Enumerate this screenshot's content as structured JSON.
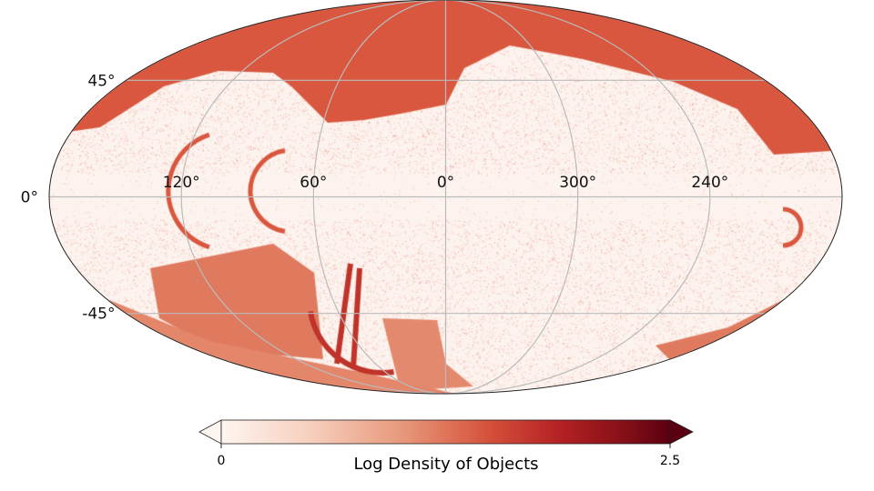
{
  "chart_data": {
    "type": "heatmap",
    "projection": "mollweide",
    "title": "",
    "colorbar": {
      "label": "Log Density of Objects",
      "min": 0,
      "max": 2.5,
      "ticks": [
        "0",
        "2.5"
      ],
      "extend": "both",
      "colormap": [
        "#fff5f0",
        "#fcbba1",
        "#fc9272",
        "#fb6a4a",
        "#ef3b2c",
        "#cb181d",
        "#a50f15",
        "#67000d"
      ]
    },
    "lat_ticks": [
      {
        "value": 45,
        "label": "45°"
      },
      {
        "value": 0,
        "label": "0°"
      },
      {
        "value": -45,
        "label": "-45°"
      }
    ],
    "lon_ticks": [
      {
        "value": 120,
        "label": "120°"
      },
      {
        "value": 60,
        "label": "60°"
      },
      {
        "value": 0,
        "label": "0°"
      },
      {
        "value": 300,
        "label": "300°"
      },
      {
        "value": 240,
        "label": "240°"
      }
    ],
    "grid": true
  }
}
